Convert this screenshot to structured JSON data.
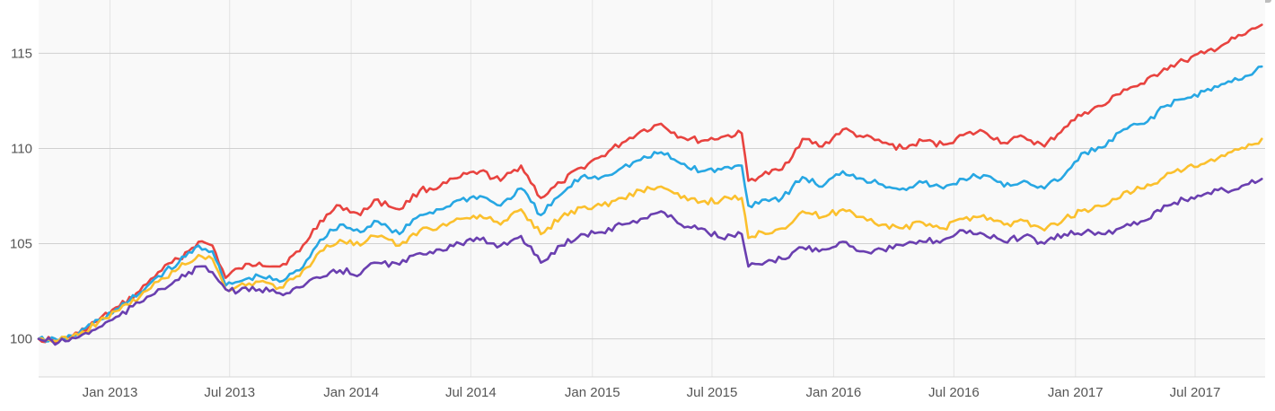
{
  "chart_data": {
    "type": "line",
    "title": "",
    "xlabel": "",
    "ylabel": "",
    "x_range": [
      "2012-09-15",
      "2017-10-15"
    ],
    "ylim": [
      98,
      117.8
    ],
    "y_ticks": [
      {
        "value": 100,
        "label": "100"
      },
      {
        "value": 105,
        "label": "105"
      },
      {
        "value": 110,
        "label": "110"
      },
      {
        "value": 115,
        "label": "115"
      }
    ],
    "x_ticks": [
      {
        "date": "2013-01-01",
        "label": "Jan 2013"
      },
      {
        "date": "2013-07-01",
        "label": "Jul 2013"
      },
      {
        "date": "2014-01-01",
        "label": "Jan 2014"
      },
      {
        "date": "2014-07-01",
        "label": "Jul 2014"
      },
      {
        "date": "2015-01-01",
        "label": "Jan 2015"
      },
      {
        "date": "2015-07-01",
        "label": "Jul 2015"
      },
      {
        "date": "2016-01-01",
        "label": "Jan 2016"
      },
      {
        "date": "2016-07-01",
        "label": "Jul 2016"
      },
      {
        "date": "2017-01-01",
        "label": "Jan 2017"
      },
      {
        "date": "2017-07-01",
        "label": "Jul 2017"
      }
    ],
    "grid": true,
    "legend": "none",
    "background": "#f9f9f9",
    "series": [
      {
        "color": "#e8433f",
        "x": [
          "2012-09-15",
          "2012-10-15",
          "2012-11-15",
          "2012-12-15",
          "2013-01-15",
          "2013-02-15",
          "2013-03-15",
          "2013-04-15",
          "2013-05-15",
          "2013-06-05",
          "2013-06-25",
          "2013-07-15",
          "2013-08-15",
          "2013-09-15",
          "2013-10-15",
          "2013-11-15",
          "2013-12-15",
          "2014-01-15",
          "2014-02-05",
          "2014-03-15",
          "2014-04-15",
          "2014-05-15",
          "2014-06-15",
          "2014-07-15",
          "2014-08-15",
          "2014-09-15",
          "2014-10-15",
          "2014-11-15",
          "2014-12-15",
          "2015-01-15",
          "2015-02-15",
          "2015-03-15",
          "2015-04-15",
          "2015-05-15",
          "2015-06-15",
          "2015-07-15",
          "2015-08-15",
          "2015-08-25",
          "2015-09-15",
          "2015-10-15",
          "2015-11-15",
          "2015-12-15",
          "2016-01-15",
          "2016-02-15",
          "2016-03-15",
          "2016-04-15",
          "2016-05-15",
          "2016-06-15",
          "2016-07-15",
          "2016-08-15",
          "2016-09-15",
          "2016-10-15",
          "2016-11-15",
          "2016-12-15",
          "2017-01-15",
          "2017-02-15",
          "2017-03-15",
          "2017-04-15",
          "2017-05-15",
          "2017-06-15",
          "2017-07-15",
          "2017-08-15",
          "2017-09-15",
          "2017-10-10"
        ],
        "values": [
          100.0,
          99.9,
          100.3,
          101.0,
          101.7,
          102.5,
          103.5,
          104.2,
          105.1,
          104.9,
          103.2,
          103.7,
          104.0,
          103.8,
          104.6,
          106.2,
          107.0,
          106.5,
          107.3,
          106.8,
          107.8,
          108.0,
          108.5,
          108.8,
          108.3,
          109.1,
          107.4,
          108.2,
          109.0,
          109.6,
          110.3,
          110.9,
          111.3,
          110.6,
          110.4,
          110.6,
          110.8,
          108.3,
          108.6,
          108.9,
          110.5,
          110.1,
          111.0,
          110.6,
          110.3,
          110.0,
          110.4,
          110.2,
          110.7,
          110.9,
          110.3,
          110.6,
          110.1,
          111.1,
          111.9,
          112.3,
          113.1,
          113.4,
          114.2,
          114.6,
          115.0,
          115.5,
          116.0,
          116.5
        ]
      },
      {
        "color": "#27a7e3",
        "x": [
          "2012-09-15",
          "2012-10-15",
          "2012-11-15",
          "2012-12-15",
          "2013-01-15",
          "2013-02-15",
          "2013-03-15",
          "2013-04-15",
          "2013-05-15",
          "2013-06-05",
          "2013-06-25",
          "2013-07-15",
          "2013-08-15",
          "2013-09-15",
          "2013-10-15",
          "2013-11-15",
          "2013-12-15",
          "2014-01-15",
          "2014-02-05",
          "2014-03-15",
          "2014-04-15",
          "2014-05-15",
          "2014-06-15",
          "2014-07-15",
          "2014-08-15",
          "2014-09-15",
          "2014-10-15",
          "2014-11-15",
          "2014-12-15",
          "2015-01-15",
          "2015-02-15",
          "2015-03-15",
          "2015-04-15",
          "2015-05-15",
          "2015-06-15",
          "2015-07-15",
          "2015-08-15",
          "2015-08-25",
          "2015-09-15",
          "2015-10-15",
          "2015-11-15",
          "2015-12-15",
          "2016-01-15",
          "2016-02-15",
          "2016-03-15",
          "2016-04-15",
          "2016-05-15",
          "2016-06-15",
          "2016-07-15",
          "2016-08-15",
          "2016-09-15",
          "2016-10-15",
          "2016-11-15",
          "2016-12-15",
          "2017-01-15",
          "2017-02-15",
          "2017-03-15",
          "2017-04-15",
          "2017-05-15",
          "2017-06-15",
          "2017-07-15",
          "2017-08-15",
          "2017-09-15",
          "2017-10-10"
        ],
        "values": [
          100.0,
          99.9,
          100.3,
          101.0,
          101.6,
          102.4,
          103.3,
          104.0,
          104.9,
          104.6,
          102.8,
          103.0,
          103.3,
          103.0,
          103.6,
          105.2,
          106.0,
          105.6,
          106.2,
          105.5,
          106.5,
          106.8,
          107.3,
          107.5,
          107.0,
          107.9,
          106.5,
          107.6,
          108.5,
          108.5,
          109.0,
          109.4,
          109.8,
          109.2,
          108.8,
          108.9,
          109.1,
          107.0,
          107.3,
          107.4,
          108.5,
          108.0,
          108.8,
          108.4,
          108.1,
          107.9,
          108.2,
          107.9,
          108.4,
          108.6,
          108.0,
          108.3,
          107.9,
          108.6,
          109.8,
          110.1,
          111.0,
          111.3,
          112.2,
          112.6,
          113.0,
          113.4,
          113.8,
          114.3
        ]
      },
      {
        "color": "#fbc02d",
        "x": [
          "2012-09-15",
          "2012-10-15",
          "2012-11-15",
          "2012-12-15",
          "2013-01-15",
          "2013-02-15",
          "2013-03-15",
          "2013-04-15",
          "2013-05-15",
          "2013-06-05",
          "2013-06-25",
          "2013-07-15",
          "2013-08-15",
          "2013-09-15",
          "2013-10-15",
          "2013-11-15",
          "2013-12-15",
          "2014-01-15",
          "2014-02-05",
          "2014-03-15",
          "2014-04-15",
          "2014-05-15",
          "2014-06-15",
          "2014-07-15",
          "2014-08-15",
          "2014-09-15",
          "2014-10-15",
          "2014-11-15",
          "2014-12-15",
          "2015-01-15",
          "2015-02-15",
          "2015-03-15",
          "2015-04-15",
          "2015-05-15",
          "2015-06-15",
          "2015-07-15",
          "2015-08-15",
          "2015-08-25",
          "2015-09-15",
          "2015-10-15",
          "2015-11-15",
          "2015-12-15",
          "2016-01-15",
          "2016-02-15",
          "2016-03-15",
          "2016-04-15",
          "2016-05-15",
          "2016-06-15",
          "2016-07-15",
          "2016-08-15",
          "2016-09-15",
          "2016-10-15",
          "2016-11-15",
          "2016-12-15",
          "2017-01-15",
          "2017-02-15",
          "2017-03-15",
          "2017-04-15",
          "2017-05-15",
          "2017-06-15",
          "2017-07-15",
          "2017-08-15",
          "2017-09-15",
          "2017-10-10"
        ],
        "values": [
          100.0,
          99.9,
          100.2,
          100.9,
          101.5,
          102.2,
          103.0,
          103.7,
          104.4,
          104.2,
          102.6,
          102.8,
          103.0,
          102.7,
          103.3,
          104.6,
          105.2,
          104.9,
          105.4,
          104.9,
          105.7,
          105.9,
          106.3,
          106.5,
          106.0,
          106.8,
          105.5,
          106.4,
          106.9,
          107.0,
          107.4,
          107.8,
          108.0,
          107.4,
          107.2,
          107.3,
          107.4,
          105.3,
          105.6,
          105.8,
          106.7,
          106.4,
          106.8,
          106.4,
          106.0,
          105.8,
          106.1,
          105.8,
          106.3,
          106.5,
          106.0,
          106.2,
          105.7,
          106.3,
          106.8,
          107.0,
          107.7,
          107.9,
          108.5,
          108.9,
          109.2,
          109.6,
          110.0,
          110.5
        ]
      },
      {
        "color": "#6a3fb0",
        "x": [
          "2012-09-15",
          "2012-10-15",
          "2012-11-15",
          "2012-12-15",
          "2013-01-15",
          "2013-02-15",
          "2013-03-15",
          "2013-04-15",
          "2013-05-15",
          "2013-06-05",
          "2013-06-25",
          "2013-07-15",
          "2013-08-15",
          "2013-09-15",
          "2013-10-15",
          "2013-11-15",
          "2013-12-15",
          "2014-01-15",
          "2014-02-05",
          "2014-03-15",
          "2014-04-15",
          "2014-05-15",
          "2014-06-15",
          "2014-07-15",
          "2014-08-15",
          "2014-09-15",
          "2014-10-15",
          "2014-11-15",
          "2014-12-15",
          "2015-01-15",
          "2015-02-15",
          "2015-03-15",
          "2015-04-15",
          "2015-05-15",
          "2015-06-15",
          "2015-07-15",
          "2015-08-15",
          "2015-08-25",
          "2015-09-15",
          "2015-10-15",
          "2015-11-15",
          "2015-12-15",
          "2016-01-15",
          "2016-02-15",
          "2016-03-15",
          "2016-04-15",
          "2016-05-15",
          "2016-06-15",
          "2016-07-15",
          "2016-08-15",
          "2016-09-15",
          "2016-10-15",
          "2016-11-15",
          "2016-12-15",
          "2017-01-15",
          "2017-02-15",
          "2017-03-15",
          "2017-04-15",
          "2017-05-15",
          "2017-06-15",
          "2017-07-15",
          "2017-08-15",
          "2017-09-15",
          "2017-10-10"
        ],
        "values": [
          100.0,
          99.8,
          100.1,
          100.6,
          101.2,
          101.9,
          102.6,
          103.1,
          103.8,
          103.5,
          102.6,
          102.5,
          102.6,
          102.4,
          102.7,
          103.2,
          103.6,
          103.4,
          104.0,
          103.9,
          104.5,
          104.7,
          105.0,
          105.2,
          104.9,
          105.4,
          104.0,
          104.9,
          105.5,
          105.6,
          106.0,
          106.3,
          106.7,
          106.0,
          105.8,
          105.3,
          105.5,
          103.8,
          103.9,
          104.2,
          104.8,
          104.7,
          105.1,
          104.6,
          104.7,
          104.9,
          105.1,
          105.2,
          105.7,
          105.5,
          105.1,
          105.4,
          105.0,
          105.5,
          105.6,
          105.5,
          105.9,
          106.2,
          107.0,
          107.3,
          107.6,
          107.8,
          108.1,
          108.4
        ]
      }
    ]
  }
}
